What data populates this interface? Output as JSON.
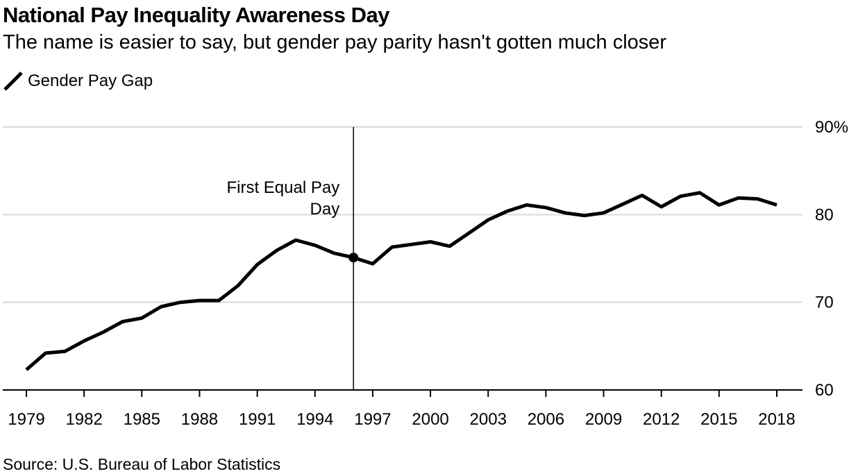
{
  "title": "National Pay Inequality Awareness Day",
  "subtitle": "The name is easier to say, but gender pay parity hasn't gotten much closer",
  "source": "Source: U.S. Bureau of Labor Statistics",
  "colors": {
    "line": "#000000",
    "grid": "#d9d9d9",
    "axis": "#000000"
  },
  "chart_data": {
    "type": "line",
    "title": "National Pay Inequality Awareness Day",
    "subtitle": "The name is easier to say, but gender pay parity hasn't gotten much closer",
    "xlabel": "",
    "ylabel": "",
    "ylim": [
      60,
      90
    ],
    "xlim": [
      1979,
      2018
    ],
    "y_ticks": [
      60,
      70,
      80,
      90
    ],
    "y_tick_labels": [
      "60",
      "70",
      "80",
      "90%"
    ],
    "x_tick_labels": [
      "1979",
      "1982",
      "1985",
      "1988",
      "1991",
      "1994",
      "1997",
      "2000",
      "2003",
      "2006",
      "2009",
      "2012",
      "2015",
      "2018"
    ],
    "grid": true,
    "legend_position": "top-left",
    "series": [
      {
        "name": "Gender Pay Gap",
        "x": [
          1979,
          1980,
          1981,
          1982,
          1983,
          1984,
          1985,
          1986,
          1987,
          1988,
          1989,
          1990,
          1991,
          1992,
          1993,
          1994,
          1995,
          1996,
          1997,
          1998,
          1999,
          2000,
          2001,
          2002,
          2003,
          2004,
          2005,
          2006,
          2007,
          2008,
          2009,
          2010,
          2011,
          2012,
          2013,
          2014,
          2015,
          2016,
          2017,
          2018
        ],
        "values": [
          62.3,
          64.2,
          64.4,
          65.6,
          66.6,
          67.8,
          68.2,
          69.5,
          70.0,
          70.2,
          70.2,
          71.9,
          74.3,
          75.9,
          77.1,
          76.5,
          75.6,
          75.1,
          74.4,
          76.3,
          76.6,
          76.9,
          76.4,
          77.9,
          79.4,
          80.4,
          81.1,
          80.8,
          80.2,
          79.9,
          80.2,
          81.2,
          82.2,
          80.9,
          82.1,
          82.5,
          81.1,
          81.9,
          81.8,
          81.1
        ]
      }
    ],
    "annotations": [
      {
        "x": 1996,
        "y": 75.1,
        "label_line1": "First Equal Pay",
        "label_line2": "Day"
      }
    ]
  }
}
